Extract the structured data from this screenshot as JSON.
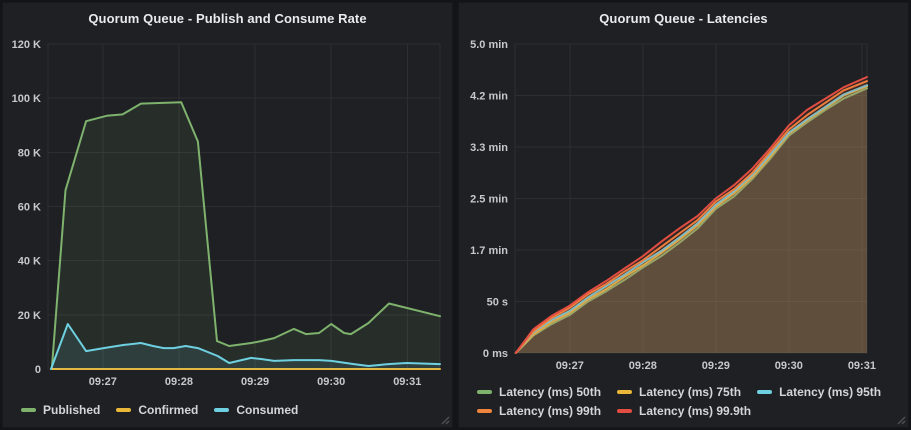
{
  "app": {
    "name": "Grafana dashboard",
    "theme_background": "#131417",
    "panel_background": "#1e2023"
  },
  "panels": [
    {
      "title": "Quorum Queue - Publish and Consume Rate",
      "legend_rows": [
        [
          {
            "label": "Published",
            "color": "#7EB26D"
          },
          {
            "label": "Confirmed",
            "color": "#EAB839"
          },
          {
            "label": "Consumed",
            "color": "#6ED0E0"
          }
        ]
      ]
    },
    {
      "title": "Quorum Queue - Latencies",
      "legend_rows": [
        [
          {
            "label": "Latency (ms) 50th",
            "color": "#7EB26D"
          },
          {
            "label": "Latency (ms) 75th",
            "color": "#EAB839"
          },
          {
            "label": "Latency (ms) 95th",
            "color": "#6ED0E0"
          }
        ],
        [
          {
            "label": "Latency (ms) 99th",
            "color": "#EF843C"
          },
          {
            "label": "Latency (ms) 99.9th",
            "color": "#E24D42"
          }
        ]
      ]
    }
  ],
  "chart_data": [
    {
      "type": "line",
      "title": "Quorum Queue - Publish and Consume Rate",
      "xlabel": "",
      "ylabel": "",
      "x_unit": "time of day (minutes after 09:00)",
      "y_unit": "messages per second",
      "xlim": [
        26.28,
        31.43
      ],
      "ylim": [
        0,
        120000
      ],
      "grid": true,
      "legend_position": "bottom-left",
      "fill_opacity": 0.1,
      "line_width": 2,
      "x_ticks": [
        {
          "t": 27,
          "label": "09:27"
        },
        {
          "t": 28,
          "label": "09:28"
        },
        {
          "t": 29,
          "label": "09:29"
        },
        {
          "t": 30,
          "label": "09:30"
        },
        {
          "t": 31,
          "label": "09:31"
        }
      ],
      "y_ticks": [
        {
          "v": 0,
          "label": "0"
        },
        {
          "v": 20000,
          "label": "20 K"
        },
        {
          "v": 40000,
          "label": "40 K"
        },
        {
          "v": 60000,
          "label": "60 K"
        },
        {
          "v": 80000,
          "label": "80 K"
        },
        {
          "v": 100000,
          "label": "100 K"
        },
        {
          "v": 120000,
          "label": "120 K"
        }
      ],
      "series": [
        {
          "name": "Published",
          "color": "#7EB26D",
          "points": [
            [
              26.33,
              0
            ],
            [
              26.51,
              66000
            ],
            [
              26.78,
              91500
            ],
            [
              27.05,
              93500
            ],
            [
              27.26,
              94000
            ],
            [
              27.5,
              98000
            ],
            [
              28.03,
              98500
            ],
            [
              28.25,
              84000
            ],
            [
              28.5,
              10300
            ],
            [
              28.66,
              8500
            ],
            [
              28.95,
              9600
            ],
            [
              29.08,
              10300
            ],
            [
              29.25,
              11400
            ],
            [
              29.51,
              14800
            ],
            [
              29.67,
              12900
            ],
            [
              29.84,
              13300
            ],
            [
              30.0,
              16600
            ],
            [
              30.17,
              13300
            ],
            [
              30.26,
              12900
            ],
            [
              30.49,
              17000
            ],
            [
              30.76,
              24200
            ],
            [
              31.43,
              19500
            ]
          ]
        },
        {
          "name": "Confirmed",
          "color": "#EAB839",
          "points": [
            [
              26.32,
              0
            ],
            [
              31.43,
              0
            ]
          ]
        },
        {
          "name": "Consumed",
          "color": "#6ED0E0",
          "points": [
            [
              26.32,
              0
            ],
            [
              26.54,
              16600
            ],
            [
              26.78,
              6600
            ],
            [
              27.01,
              7700
            ],
            [
              27.28,
              8900
            ],
            [
              27.5,
              9600
            ],
            [
              27.66,
              8500
            ],
            [
              27.8,
              7700
            ],
            [
              27.93,
              7700
            ],
            [
              28.09,
              8500
            ],
            [
              28.25,
              7700
            ],
            [
              28.51,
              4800
            ],
            [
              28.66,
              2200
            ],
            [
              28.95,
              4100
            ],
            [
              29.08,
              3700
            ],
            [
              29.25,
              3000
            ],
            [
              29.51,
              3300
            ],
            [
              29.84,
              3300
            ],
            [
              30.0,
              3000
            ],
            [
              30.3,
              1800
            ],
            [
              30.49,
              1100
            ],
            [
              30.75,
              1800
            ],
            [
              30.99,
              2200
            ],
            [
              31.43,
              1800
            ]
          ]
        }
      ]
    },
    {
      "type": "line",
      "title": "Quorum Queue - Latencies",
      "xlabel": "",
      "ylabel": "",
      "x_unit": "time of day (minutes after 09:00)",
      "y_unit": "seconds",
      "xlim": [
        26.25,
        31.07
      ],
      "ylim": [
        0,
        300
      ],
      "grid": true,
      "legend_position": "bottom-left",
      "fill_opacity": 0.1,
      "line_width": 2,
      "x_ticks": [
        {
          "t": 27,
          "label": "09:27"
        },
        {
          "t": 28,
          "label": "09:28"
        },
        {
          "t": 29,
          "label": "09:29"
        },
        {
          "t": 30,
          "label": "09:30"
        },
        {
          "t": 31,
          "label": "09:31"
        }
      ],
      "y_ticks": [
        {
          "v": 0,
          "label": "0 ms"
        },
        {
          "v": 50,
          "label": "50 s"
        },
        {
          "v": 100,
          "label": "1.7 min"
        },
        {
          "v": 150,
          "label": "2.5 min"
        },
        {
          "v": 200,
          "label": "3.3 min"
        },
        {
          "v": 250,
          "label": "4.2 min"
        },
        {
          "v": 300,
          "label": "5.0 min"
        }
      ],
      "series": [
        {
          "name": "Latency (ms) 50th",
          "color": "#7EB26D",
          "points": [
            [
              26.26,
              0
            ],
            [
              26.5,
              17
            ],
            [
              26.75,
              28
            ],
            [
              27.0,
              37
            ],
            [
              27.25,
              50
            ],
            [
              27.5,
              60
            ],
            [
              27.75,
              71
            ],
            [
              28.0,
              83
            ],
            [
              28.25,
              94
            ],
            [
              28.5,
              107
            ],
            [
              28.75,
              121
            ],
            [
              29.0,
              140
            ],
            [
              29.25,
              152
            ],
            [
              29.5,
              169
            ],
            [
              29.75,
              189
            ],
            [
              30.0,
              211
            ],
            [
              30.25,
              224
            ],
            [
              30.5,
              236
            ],
            [
              30.75,
              247
            ],
            [
              31.07,
              257
            ]
          ]
        },
        {
          "name": "Latency (ms) 75th",
          "color": "#EAB839",
          "points": [
            [
              26.26,
              0
            ],
            [
              26.5,
              18
            ],
            [
              26.75,
              30
            ],
            [
              27.0,
              39
            ],
            [
              27.25,
              52
            ],
            [
              27.5,
              62
            ],
            [
              27.75,
              74
            ],
            [
              28.0,
              85
            ],
            [
              28.25,
              97
            ],
            [
              28.5,
              110
            ],
            [
              28.75,
              124
            ],
            [
              29.0,
              142
            ],
            [
              29.25,
              155
            ],
            [
              29.5,
              171
            ],
            [
              29.75,
              191
            ],
            [
              30.0,
              213
            ],
            [
              30.25,
              226
            ],
            [
              30.5,
              238
            ],
            [
              30.75,
              250
            ],
            [
              31.07,
              259
            ]
          ]
        },
        {
          "name": "Latency (ms) 95th",
          "color": "#6ED0E0",
          "points": [
            [
              26.26,
              0
            ],
            [
              26.5,
              20
            ],
            [
              26.75,
              32
            ],
            [
              27.0,
              41
            ],
            [
              27.25,
              54
            ],
            [
              27.5,
              65
            ],
            [
              27.75,
              76
            ],
            [
              28.0,
              88
            ],
            [
              28.25,
              99
            ],
            [
              28.5,
              112
            ],
            [
              28.75,
              126
            ],
            [
              29.0,
              144
            ],
            [
              29.25,
              157
            ],
            [
              29.5,
              173
            ],
            [
              29.75,
              193
            ],
            [
              30.0,
              214
            ],
            [
              30.25,
              227
            ],
            [
              30.5,
              239
            ],
            [
              30.75,
              251
            ],
            [
              31.07,
              260
            ]
          ]
        },
        {
          "name": "Latency (ms) 99th",
          "color": "#EF843C",
          "points": [
            [
              26.26,
              0
            ],
            [
              26.5,
              21
            ],
            [
              26.75,
              34
            ],
            [
              27.0,
              44
            ],
            [
              27.25,
              57
            ],
            [
              27.5,
              67
            ],
            [
              27.75,
              79
            ],
            [
              28.0,
              90
            ],
            [
              28.25,
              103
            ],
            [
              28.5,
              116
            ],
            [
              28.75,
              129
            ],
            [
              29.0,
              147
            ],
            [
              29.25,
              159
            ],
            [
              29.5,
              175
            ],
            [
              29.75,
              196
            ],
            [
              30.0,
              217
            ],
            [
              30.25,
              231
            ],
            [
              30.5,
              243
            ],
            [
              30.75,
              255
            ],
            [
              31.07,
              264
            ]
          ]
        },
        {
          "name": "Latency (ms) 99.9th",
          "color": "#E24D42",
          "points": [
            [
              26.26,
              0
            ],
            [
              26.5,
              23
            ],
            [
              26.75,
              36
            ],
            [
              27.0,
              46
            ],
            [
              27.25,
              59
            ],
            [
              27.5,
              70
            ],
            [
              27.75,
              82
            ],
            [
              28.0,
              94
            ],
            [
              28.25,
              108
            ],
            [
              28.5,
              121
            ],
            [
              28.75,
              133
            ],
            [
              29.0,
              150
            ],
            [
              29.25,
              163
            ],
            [
              29.5,
              179
            ],
            [
              29.75,
              199
            ],
            [
              30.0,
              221
            ],
            [
              30.25,
              236
            ],
            [
              30.5,
              247
            ],
            [
              30.75,
              258
            ],
            [
              31.07,
              268
            ]
          ]
        }
      ]
    }
  ]
}
